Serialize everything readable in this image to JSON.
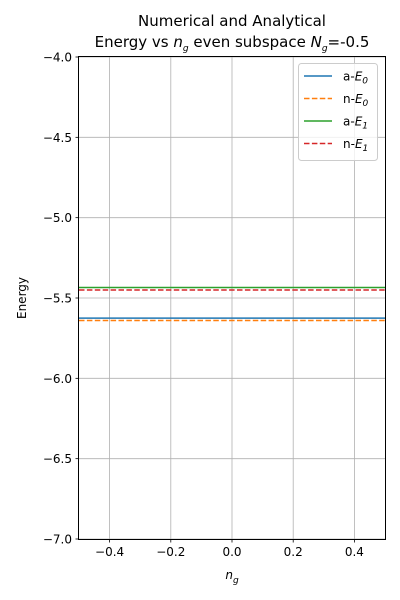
{
  "chart_data": {
    "type": "line",
    "title_line1": "Numerical and Analytical",
    "title_line2_prefix": "Energy vs ",
    "title_line2_ng_base": "n",
    "title_line2_ng_sub": "g",
    "title_line2_middle": " even subspace ",
    "title_line2_Ng_base": "N",
    "title_line2_Ng_sub": "g",
    "title_line2_suffix": "=-0.5",
    "xlabel_base": "n",
    "xlabel_sub": "g",
    "ylabel": "Energy",
    "xlim": [
      -0.5,
      0.5
    ],
    "ylim": [
      -7.0,
      -4.0
    ],
    "xticks": [
      -0.4,
      -0.2,
      0.0,
      0.2,
      0.4
    ],
    "xtick_labels": [
      "−0.4",
      "−0.2",
      "0.0",
      "0.2",
      "0.4"
    ],
    "yticks": [
      -7.0,
      -6.5,
      -6.0,
      -5.5,
      -5.0,
      -4.5,
      -4.0
    ],
    "ytick_labels": [
      "−7.0",
      "−6.5",
      "−6.0",
      "−5.5",
      "−5.0",
      "−4.5",
      "−4.0"
    ],
    "grid": true,
    "legend_position": "top-right",
    "series": [
      {
        "name": "a-E0",
        "label_prefix": "a-",
        "label_base": "E",
        "label_sub": "0",
        "color": "#1f77b4",
        "dashed": false,
        "x": [
          -0.5,
          0.5
        ],
        "y": [
          -5.625,
          -5.625
        ]
      },
      {
        "name": "n-E0",
        "label_prefix": "n-",
        "label_base": "E",
        "label_sub": "0",
        "color": "#ff7f0e",
        "dashed": true,
        "x": [
          -0.5,
          0.5
        ],
        "y": [
          -5.64,
          -5.64
        ]
      },
      {
        "name": "a-E1",
        "label_prefix": "a-",
        "label_base": "E",
        "label_sub": "1",
        "color": "#2ca02c",
        "dashed": false,
        "x": [
          -0.5,
          0.5
        ],
        "y": [
          -5.435,
          -5.435
        ]
      },
      {
        "name": "n-E1",
        "label_prefix": "n-",
        "label_base": "E",
        "label_sub": "1",
        "color": "#d62728",
        "dashed": true,
        "x": [
          -0.5,
          0.5
        ],
        "y": [
          -5.45,
          -5.45
        ]
      }
    ]
  }
}
